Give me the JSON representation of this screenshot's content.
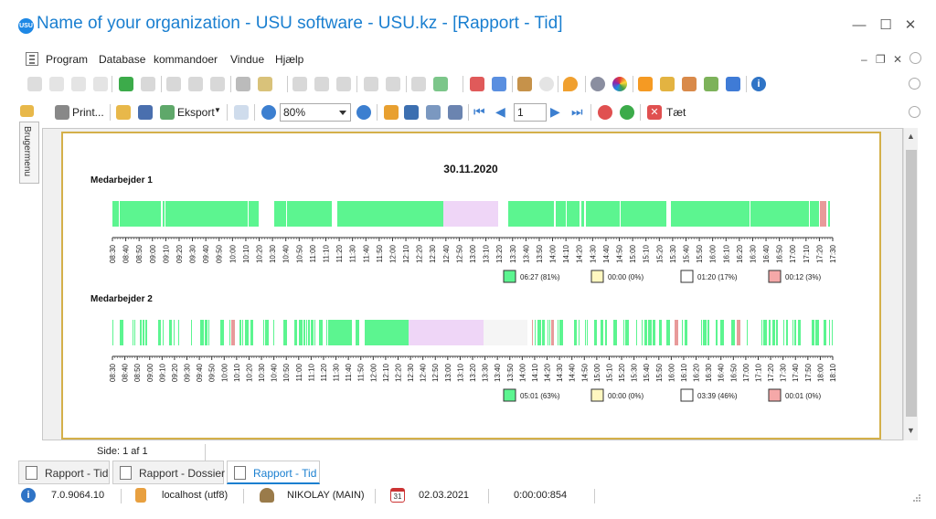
{
  "window": {
    "logo_text": "USU",
    "title": "Name of your organization - USU software - USU.kz - [Rapport - Tid]",
    "minimize": "—",
    "maximize": "☐",
    "close": "✕"
  },
  "menu": {
    "items": [
      "Program",
      "Database",
      "kommandoer",
      "Vindue",
      "Hjælp"
    ],
    "mdi_min": "–",
    "mdi_restore": "❐",
    "mdi_close": "✕"
  },
  "toolbar2": {
    "print_label": "Print...",
    "export_label": "Eksport",
    "zoom_value": "80%",
    "page_value": "1",
    "close_label": "Tæt"
  },
  "side_panel": {
    "label": "Brugermenu"
  },
  "report": {
    "date": "30.11.2020",
    "sections": [
      {
        "name": "Medarbejder 1",
        "times": [
          "08:30",
          "08:40",
          "08:50",
          "09:00",
          "09:10",
          "09:20",
          "09:30",
          "09:40",
          "09:50",
          "10:00",
          "10:10",
          "10:20",
          "10:30",
          "10:40",
          "10:50",
          "11:00",
          "11:10",
          "11:20",
          "11:30",
          "11:40",
          "11:50",
          "12:00",
          "12:10",
          "12:20",
          "12:30",
          "12:40",
          "12:50",
          "13:00",
          "13:10",
          "13:20",
          "13:30",
          "13:40",
          "13:50",
          "14:00",
          "14:10",
          "14:20",
          "14:30",
          "14:40",
          "14:50",
          "15:00",
          "15:10",
          "15:20",
          "15:30",
          "15:40",
          "15:50",
          "16:00",
          "16:10",
          "16:20",
          "16:30",
          "16:40",
          "16:50",
          "17:00",
          "17:10",
          "17:20",
          "17:30"
        ],
        "legend": [
          "06:27 (81%)",
          "00:00 (0%)",
          "01:20 (17%)",
          "00:12 (3%)"
        ]
      },
      {
        "name": "Medarbejder 2",
        "times": [
          "08:30",
          "08:40",
          "08:50",
          "09:00",
          "09:10",
          "09:20",
          "09:30",
          "09:40",
          "09:50",
          "10:00",
          "10:10",
          "10:20",
          "10:30",
          "10:40",
          "10:50",
          "11:00",
          "11:10",
          "11:20",
          "11:30",
          "11:40",
          "11:50",
          "12:00",
          "12:10",
          "12:20",
          "12:30",
          "12:40",
          "12:50",
          "13:00",
          "13:10",
          "13:20",
          "13:30",
          "13:40",
          "13:50",
          "14:00",
          "14:10",
          "14:20",
          "14:30",
          "14:40",
          "14:50",
          "15:00",
          "15:10",
          "15:20",
          "15:30",
          "15:40",
          "15:50",
          "16:00",
          "16:10",
          "16:20",
          "16:30",
          "16:40",
          "16:50",
          "17:00",
          "17:10",
          "17:20",
          "17:30",
          "17:40",
          "17:50",
          "18:00",
          "18:10"
        ],
        "legend": [
          "05:01 (63%)",
          "00:00 (0%)",
          "03:39 (46%)",
          "00:01 (0%)"
        ]
      }
    ],
    "legend_colors": [
      "#5cf590",
      "#fff7c0",
      "#ffffff",
      "#f5a8a8"
    ],
    "activity_color": "#5cf590",
    "lunch_color": "#efd6f7"
  },
  "statusline": {
    "page_info": "Side: 1 af 1"
  },
  "tabs": [
    {
      "label": "Rapport - Tid"
    },
    {
      "label": "Rapport - Dossier"
    },
    {
      "label": "Rapport - Tid"
    }
  ],
  "statusbar": {
    "version": "7.0.9064.10",
    "db": "localhost (utf8)",
    "user": "NIKOLAY (MAIN)",
    "date": "02.03.2021",
    "timer": "0:00:00:854",
    "calendar_day": "31"
  }
}
